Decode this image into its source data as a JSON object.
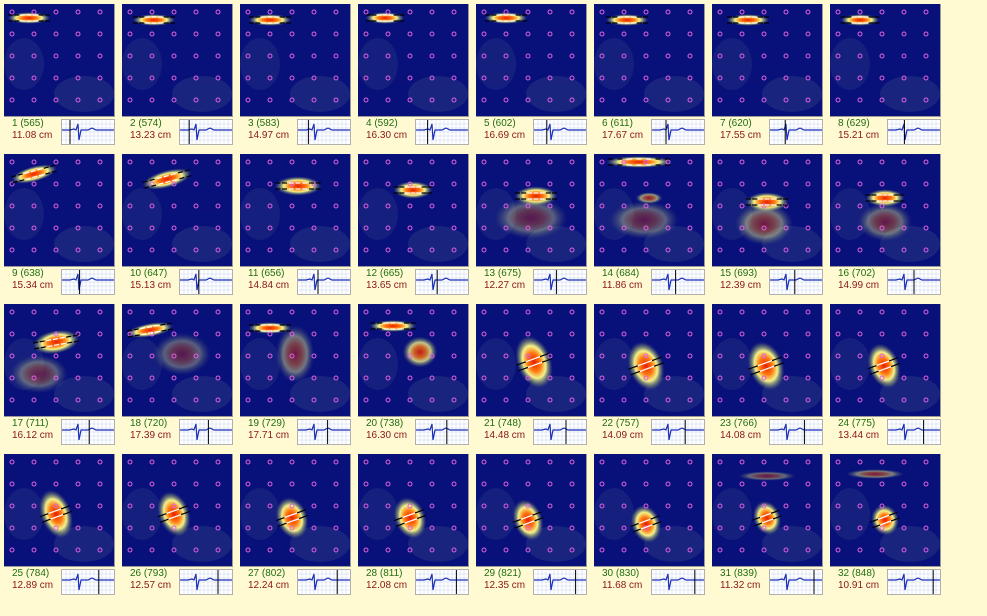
{
  "colors": {
    "background": "#FFFAD2",
    "map_background": "#08107A",
    "frame_number_text": "#1f6e12",
    "distance_text": "#8b1616",
    "ecg_trace": "#1a2fb8",
    "ecg_marker": "#000000",
    "sensor_dot": "#e060e0",
    "hotspot_core": "#e81e00",
    "hotspot_halo": "#ffff8a",
    "vector_arrow": "#000000"
  },
  "frames": [
    {
      "id": "1 (565)",
      "distance": "11.08 cm"
    },
    {
      "id": "2 (574)",
      "distance": "13.23 cm"
    },
    {
      "id": "3 (583)",
      "distance": "14.97 cm"
    },
    {
      "id": "4 (592)",
      "distance": "16.30 cm"
    },
    {
      "id": "5 (602)",
      "distance": "16.69 cm"
    },
    {
      "id": "6 (611)",
      "distance": "17.67 cm"
    },
    {
      "id": "7 (620)",
      "distance": "17.55 cm"
    },
    {
      "id": "8 (629)",
      "distance": "15.21 cm"
    },
    {
      "id": "9 (638)",
      "distance": "15.34 cm"
    },
    {
      "id": "10 (647)",
      "distance": "15.13 cm"
    },
    {
      "id": "11 (656)",
      "distance": "14.84 cm"
    },
    {
      "id": "12 (665)",
      "distance": "13.65 cm"
    },
    {
      "id": "13 (675)",
      "distance": "12.27 cm"
    },
    {
      "id": "14 (684)",
      "distance": "11.86 cm"
    },
    {
      "id": "15 (693)",
      "distance": "12.39 cm"
    },
    {
      "id": "16 (702)",
      "distance": "14.99 cm"
    },
    {
      "id": "17 (711)",
      "distance": "16.12 cm"
    },
    {
      "id": "18 (720)",
      "distance": "17.39 cm"
    },
    {
      "id": "19 (729)",
      "distance": "17.71 cm"
    },
    {
      "id": "20 (738)",
      "distance": "16.30 cm"
    },
    {
      "id": "21 (748)",
      "distance": "14.48 cm"
    },
    {
      "id": "22 (757)",
      "distance": "14.09 cm"
    },
    {
      "id": "23 (766)",
      "distance": "14.08 cm"
    },
    {
      "id": "24 (775)",
      "distance": "13.44 cm"
    },
    {
      "id": "25 (784)",
      "distance": "12.89 cm"
    },
    {
      "id": "26 (793)",
      "distance": "12.57 cm"
    },
    {
      "id": "27 (802)",
      "distance": "12.24 cm"
    },
    {
      "id": "28 (811)",
      "distance": "12.08 cm"
    },
    {
      "id": "29 (821)",
      "distance": "12.35 cm"
    },
    {
      "id": "30 (830)",
      "distance": "11.68 cm"
    },
    {
      "id": "31 (839)",
      "distance": "11.32 cm"
    },
    {
      "id": "32 (848)",
      "distance": "10.91 cm"
    }
  ]
}
